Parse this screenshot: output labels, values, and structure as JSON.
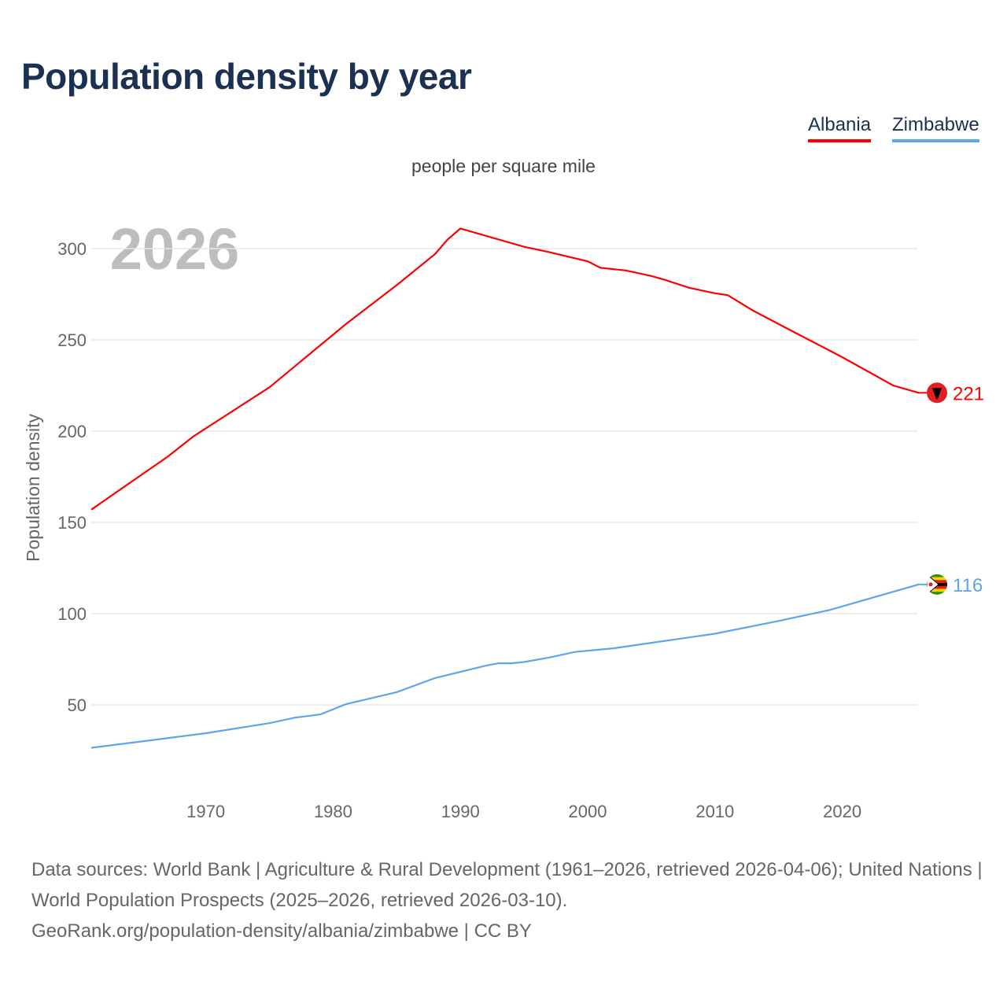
{
  "title": "Population density by year",
  "subtitle": "people per square mile",
  "year_watermark": "2026",
  "legend": [
    {
      "label": "Albania",
      "color": "#ff0000"
    },
    {
      "label": "Zimbabwe",
      "color": "#5ea6ea"
    }
  ],
  "chart_data": {
    "type": "line",
    "title": "Population density by year",
    "ylabel": "Population density",
    "xlabel": "",
    "xlim": [
      1961,
      2026
    ],
    "ylim": [
      0,
      320
    ],
    "x_ticks": [
      1970,
      1980,
      1990,
      2000,
      2010,
      2020
    ],
    "y_ticks": [
      50,
      100,
      150,
      200,
      250,
      300
    ],
    "grid": "horizontal",
    "legend_position": "top-right",
    "series": [
      {
        "name": "Albania",
        "color": "#ff0000",
        "end_label": "221",
        "points": [
          [
            1961,
            157
          ],
          [
            1967,
            186
          ],
          [
            1969,
            197
          ],
          [
            1975,
            224
          ],
          [
            1981,
            258.6
          ],
          [
            1985,
            280
          ],
          [
            1988,
            297
          ],
          [
            1989,
            305
          ],
          [
            1990,
            311
          ],
          [
            1993,
            305
          ],
          [
            1995,
            301
          ],
          [
            1997,
            298
          ],
          [
            2000,
            293
          ],
          [
            2001,
            289.5
          ],
          [
            2003,
            288
          ],
          [
            2005,
            285
          ],
          [
            2006,
            283
          ],
          [
            2008,
            278.5
          ],
          [
            2010,
            275.5
          ],
          [
            2011,
            274.5
          ],
          [
            2013,
            266
          ],
          [
            2016,
            255
          ],
          [
            2020,
            240.5
          ],
          [
            2024,
            225
          ],
          [
            2026,
            221
          ]
        ]
      },
      {
        "name": "Zimbabwe",
        "color": "#5ea6ea",
        "end_label": "116",
        "points": [
          [
            1961,
            26.5
          ],
          [
            1965,
            30
          ],
          [
            1970,
            34.5
          ],
          [
            1975,
            40
          ],
          [
            1977,
            43
          ],
          [
            1979,
            44.8
          ],
          [
            1981,
            50.4
          ],
          [
            1985,
            57
          ],
          [
            1988,
            64.7
          ],
          [
            1992,
            71.5
          ],
          [
            1993,
            72.8
          ],
          [
            1994,
            72.8
          ],
          [
            1995,
            73.5
          ],
          [
            1997,
            76
          ],
          [
            1999,
            79
          ],
          [
            2002,
            81
          ],
          [
            2005,
            84
          ],
          [
            2010,
            89
          ],
          [
            2015,
            96
          ],
          [
            2019,
            102
          ],
          [
            2023,
            110
          ],
          [
            2026,
            116
          ]
        ]
      }
    ]
  },
  "footer": {
    "line1": "Data sources: World Bank | Agriculture & Rural Development (1961–2026, retrieved 2026-04-06); United Nations | World Population Prospects (2025–2026, retrieved 2026-03-10).",
    "line2": "GeoRank.org/population-density/albania/zimbabwe | CC BY"
  }
}
